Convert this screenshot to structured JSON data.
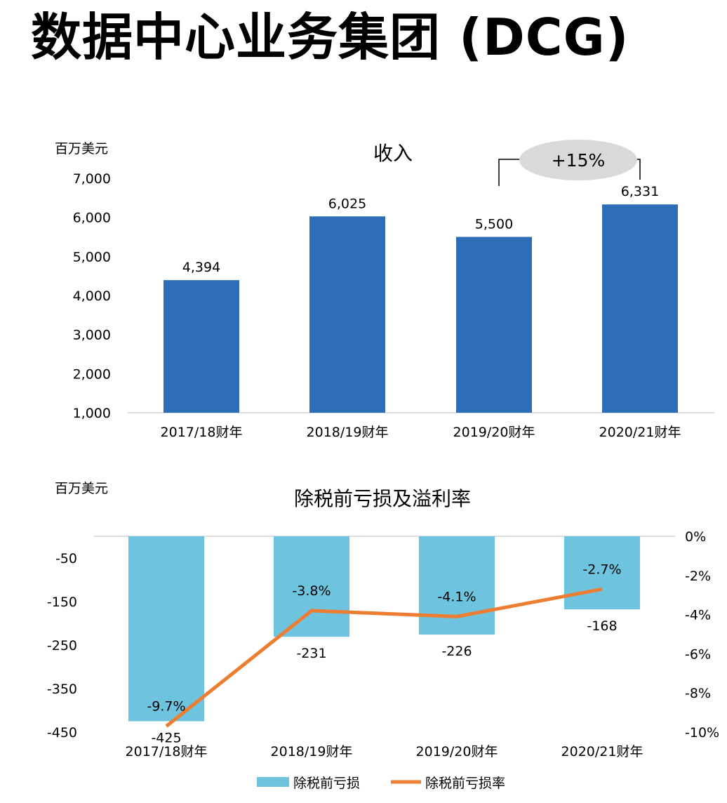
{
  "page": {
    "title": "数据中心业务集团 (DCG)"
  },
  "chart_data": [
    {
      "type": "bar",
      "title": "收入",
      "unit_label": "百万美元",
      "categories": [
        "2017/18财年",
        "2018/19财年",
        "2019/20财年",
        "2020/21财年"
      ],
      "values": [
        4394,
        6025,
        5500,
        6331
      ],
      "value_labels": [
        "4,394",
        "6,025",
        "5,500",
        "6,331"
      ],
      "ylim": [
        1000,
        7000
      ],
      "yticks": [
        "1,000",
        "2,000",
        "3,000",
        "4,000",
        "5,000",
        "6,000",
        "7,000"
      ],
      "ytick_values": [
        1000,
        2000,
        3000,
        4000,
        5000,
        6000,
        7000
      ],
      "bar_color": "#2E6EB7",
      "annotation": {
        "text": "+15%",
        "from_category": "2019/20财年",
        "to_category": "2020/21财年"
      },
      "grid": false
    },
    {
      "type": "bar+line",
      "title": "除税前亏损及溢利率",
      "unit_label": "百万美元",
      "categories": [
        "2017/18财年",
        "2018/19财年",
        "2019/20财年",
        "2020/21财年"
      ],
      "series": [
        {
          "name": "除税前亏损",
          "type": "bar",
          "values": [
            -425,
            -231,
            -226,
            -168
          ],
          "value_labels": [
            "-425",
            "-231",
            "-226",
            "-168"
          ],
          "color": "#6EC3DE"
        },
        {
          "name": "除税前亏损率",
          "type": "line",
          "values": [
            -9.7,
            -3.8,
            -4.1,
            -2.7
          ],
          "value_labels": [
            "-9.7%",
            "-3.8%",
            "-4.1%",
            "-2.7%"
          ],
          "color": "#ED7D31"
        }
      ],
      "ylim_left": [
        -450,
        0
      ],
      "yticks_left": [
        "-50",
        "-150",
        "-250",
        "-350",
        "-450"
      ],
      "ytick_values_left": [
        -50,
        -150,
        -250,
        -350,
        -450
      ],
      "ylim_right": [
        -10,
        0
      ],
      "yticks_right": [
        "0%",
        "-2%",
        "-4%",
        "-6%",
        "-8%",
        "-10%"
      ],
      "ytick_values_right": [
        0,
        -2,
        -4,
        -6,
        -8,
        -10
      ],
      "legend": "bottom",
      "grid": false
    }
  ]
}
